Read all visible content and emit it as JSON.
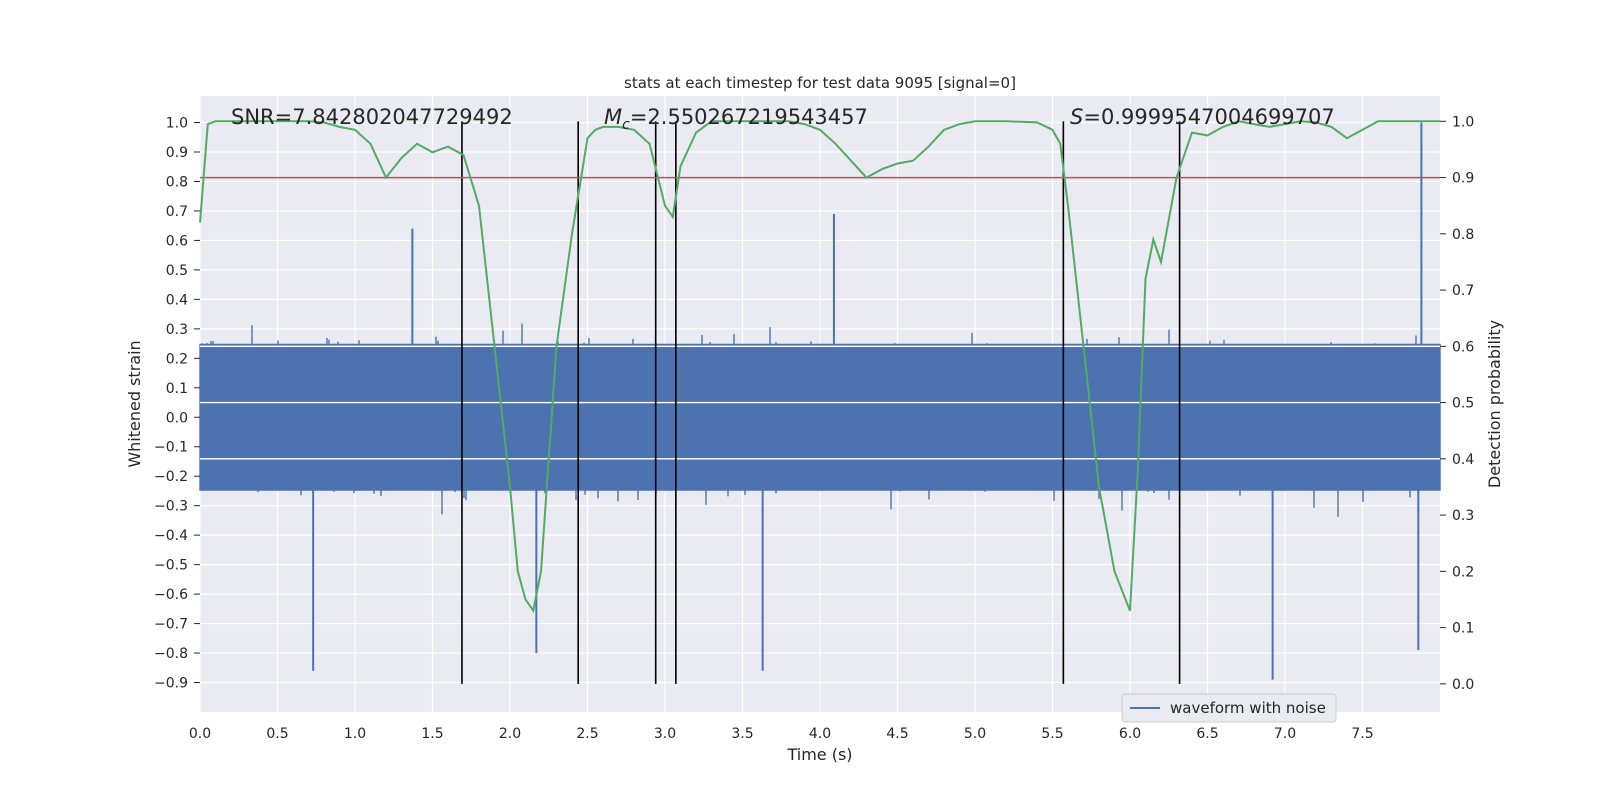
{
  "chart_data": {
    "type": "line",
    "title": "stats at each timestep for test data 9095 [signal=0]",
    "xlabel": "Time (s)",
    "ylabel_left": "Whitened strain",
    "ylabel_right": "Detection probability",
    "xlim": [
      0.0,
      8.0
    ],
    "ylim_left": [
      -1.0,
      1.09
    ],
    "ylim_right": [
      -0.05,
      1.045
    ],
    "x_ticks": [
      "0.0",
      "0.5",
      "1.0",
      "1.5",
      "2.0",
      "2.5",
      "3.0",
      "3.5",
      "4.0",
      "4.5",
      "5.0",
      "5.5",
      "6.0",
      "6.5",
      "7.0",
      "7.5"
    ],
    "y_ticks_left": [
      "1.0",
      "0.9",
      "0.8",
      "0.7",
      "0.6",
      "0.5",
      "0.4",
      "0.3",
      "0.2",
      "0.1",
      "0.0",
      "−0.1",
      "−0.2",
      "−0.3",
      "−0.4",
      "−0.5",
      "−0.6",
      "−0.7",
      "−0.8",
      "−0.9"
    ],
    "y_ticks_right": [
      "1.0",
      "0.9",
      "0.8",
      "0.7",
      "0.6",
      "0.5",
      "0.4",
      "0.3",
      "0.2",
      "0.1",
      "0.0"
    ],
    "annotations": {
      "snr": "SNR=7.842802047729492",
      "mc_symbol": "M",
      "mc_subscript": "c",
      "mc_value": "=2.550267219543457",
      "s_symbol": "S",
      "s_value": "=0.9999547004699707"
    },
    "legend": {
      "label": "waveform with noise",
      "position": "lower-right"
    },
    "colors": {
      "waveform": "#4c72b0",
      "probability": "#55a868",
      "threshold": "#c44e52",
      "markers": "#000000",
      "background": "#eaeaf2",
      "grid": "#ffffff"
    },
    "threshold": 0.9,
    "vertical_markers": [
      1.69,
      2.44,
      2.94,
      3.07,
      5.57,
      6.32
    ],
    "waveform_envelope": {
      "core_amplitude": 0.32,
      "notable_peaks": [
        {
          "x": 0.73,
          "y": -0.86
        },
        {
          "x": 1.37,
          "y": 0.64
        },
        {
          "x": 2.17,
          "y": -0.8
        },
        {
          "x": 3.63,
          "y": -0.86
        },
        {
          "x": 4.09,
          "y": 0.69
        },
        {
          "x": 6.92,
          "y": -0.89
        },
        {
          "x": 7.88,
          "y": 1.0
        },
        {
          "x": 7.86,
          "y": -0.79
        }
      ]
    },
    "series": [
      {
        "name": "detection probability",
        "x": [
          0.0,
          0.05,
          0.1,
          0.15,
          0.2,
          0.3,
          0.4,
          0.5,
          0.6,
          0.7,
          0.8,
          0.9,
          1.0,
          1.1,
          1.2,
          1.3,
          1.4,
          1.5,
          1.6,
          1.7,
          1.8,
          1.9,
          2.0,
          2.05,
          2.1,
          2.15,
          2.2,
          2.3,
          2.4,
          2.5,
          2.55,
          2.6,
          2.7,
          2.8,
          2.9,
          3.0,
          3.05,
          3.1,
          3.2,
          3.3,
          3.4,
          3.5,
          3.6,
          3.7,
          3.8,
          3.9,
          4.0,
          4.1,
          4.2,
          4.3,
          4.4,
          4.5,
          4.6,
          4.7,
          4.8,
          4.9,
          5.0,
          5.2,
          5.4,
          5.5,
          5.55,
          5.6,
          5.7,
          5.8,
          5.9,
          6.0,
          6.05,
          6.1,
          6.15,
          6.2,
          6.3,
          6.4,
          6.5,
          6.6,
          6.7,
          6.8,
          6.9,
          7.0,
          7.1,
          7.2,
          7.3,
          7.4,
          7.5,
          7.6,
          7.7,
          7.8,
          7.9,
          8.0
        ],
        "values": [
          0.82,
          0.995,
          1.0,
          1.0,
          1.0,
          1.0,
          1.0,
          1.0,
          1.0,
          1.0,
          0.998,
          0.99,
          0.985,
          0.96,
          0.9,
          0.935,
          0.96,
          0.945,
          0.955,
          0.94,
          0.85,
          0.6,
          0.35,
          0.2,
          0.15,
          0.13,
          0.2,
          0.6,
          0.8,
          0.97,
          0.985,
          0.99,
          0.99,
          0.985,
          0.96,
          0.85,
          0.83,
          0.92,
          0.98,
          1.0,
          1.0,
          1.0,
          1.0,
          1.0,
          1.0,
          0.995,
          0.985,
          0.96,
          0.93,
          0.9,
          0.915,
          0.925,
          0.93,
          0.955,
          0.985,
          0.995,
          1.0,
          1.0,
          0.998,
          0.985,
          0.96,
          0.85,
          0.6,
          0.35,
          0.2,
          0.13,
          0.38,
          0.72,
          0.79,
          0.75,
          0.9,
          0.98,
          0.975,
          0.99,
          1.0,
          0.995,
          0.99,
          0.995,
          1.0,
          0.998,
          0.99,
          0.97,
          0.985,
          1.0,
          1.0,
          1.0,
          1.0,
          1.0
        ]
      }
    ]
  }
}
